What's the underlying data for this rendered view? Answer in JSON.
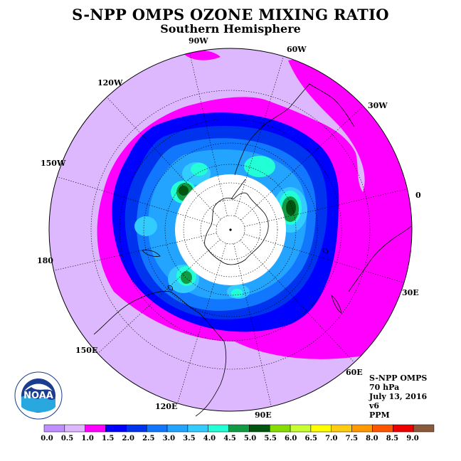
{
  "header": {
    "title": "S-NPP OMPS OZONE MIXING RATIO",
    "subtitle": "Southern Hemisphere"
  },
  "map": {
    "projection": "south-polar-stereographic",
    "longitude_labels": [
      "90W",
      "60W",
      "30W",
      "0",
      "30E",
      "60E",
      "90E",
      "120E",
      "150E",
      "180",
      "150W",
      "120W"
    ]
  },
  "info": {
    "instrument": "S-NPP OMPS",
    "level": "70 hPa",
    "date": "July 13, 2016",
    "version": "v6",
    "units": "PPM"
  },
  "colorbar": {
    "ticks": [
      "0.0",
      "0.5",
      "1.0",
      "1.5",
      "2.0",
      "2.5",
      "3.0",
      "3.5",
      "4.0",
      "4.5",
      "5.0",
      "5.5",
      "6.0",
      "6.5",
      "7.0",
      "7.5",
      "8.0",
      "8.5",
      "9.0"
    ],
    "colors": [
      "#c08fff",
      "#ddb8ff",
      "#ff00ff",
      "#0000ff",
      "#0033ee",
      "#1177ff",
      "#22a4ff",
      "#33ccff",
      "#22ffd6",
      "#119b44",
      "#005511",
      "#88dd00",
      "#c8ff33",
      "#ffff00",
      "#ffcc11",
      "#ff9900",
      "#ff5500",
      "#ee0000",
      "#8b5a3c"
    ]
  },
  "logo": {
    "text": "NOAA"
  }
}
